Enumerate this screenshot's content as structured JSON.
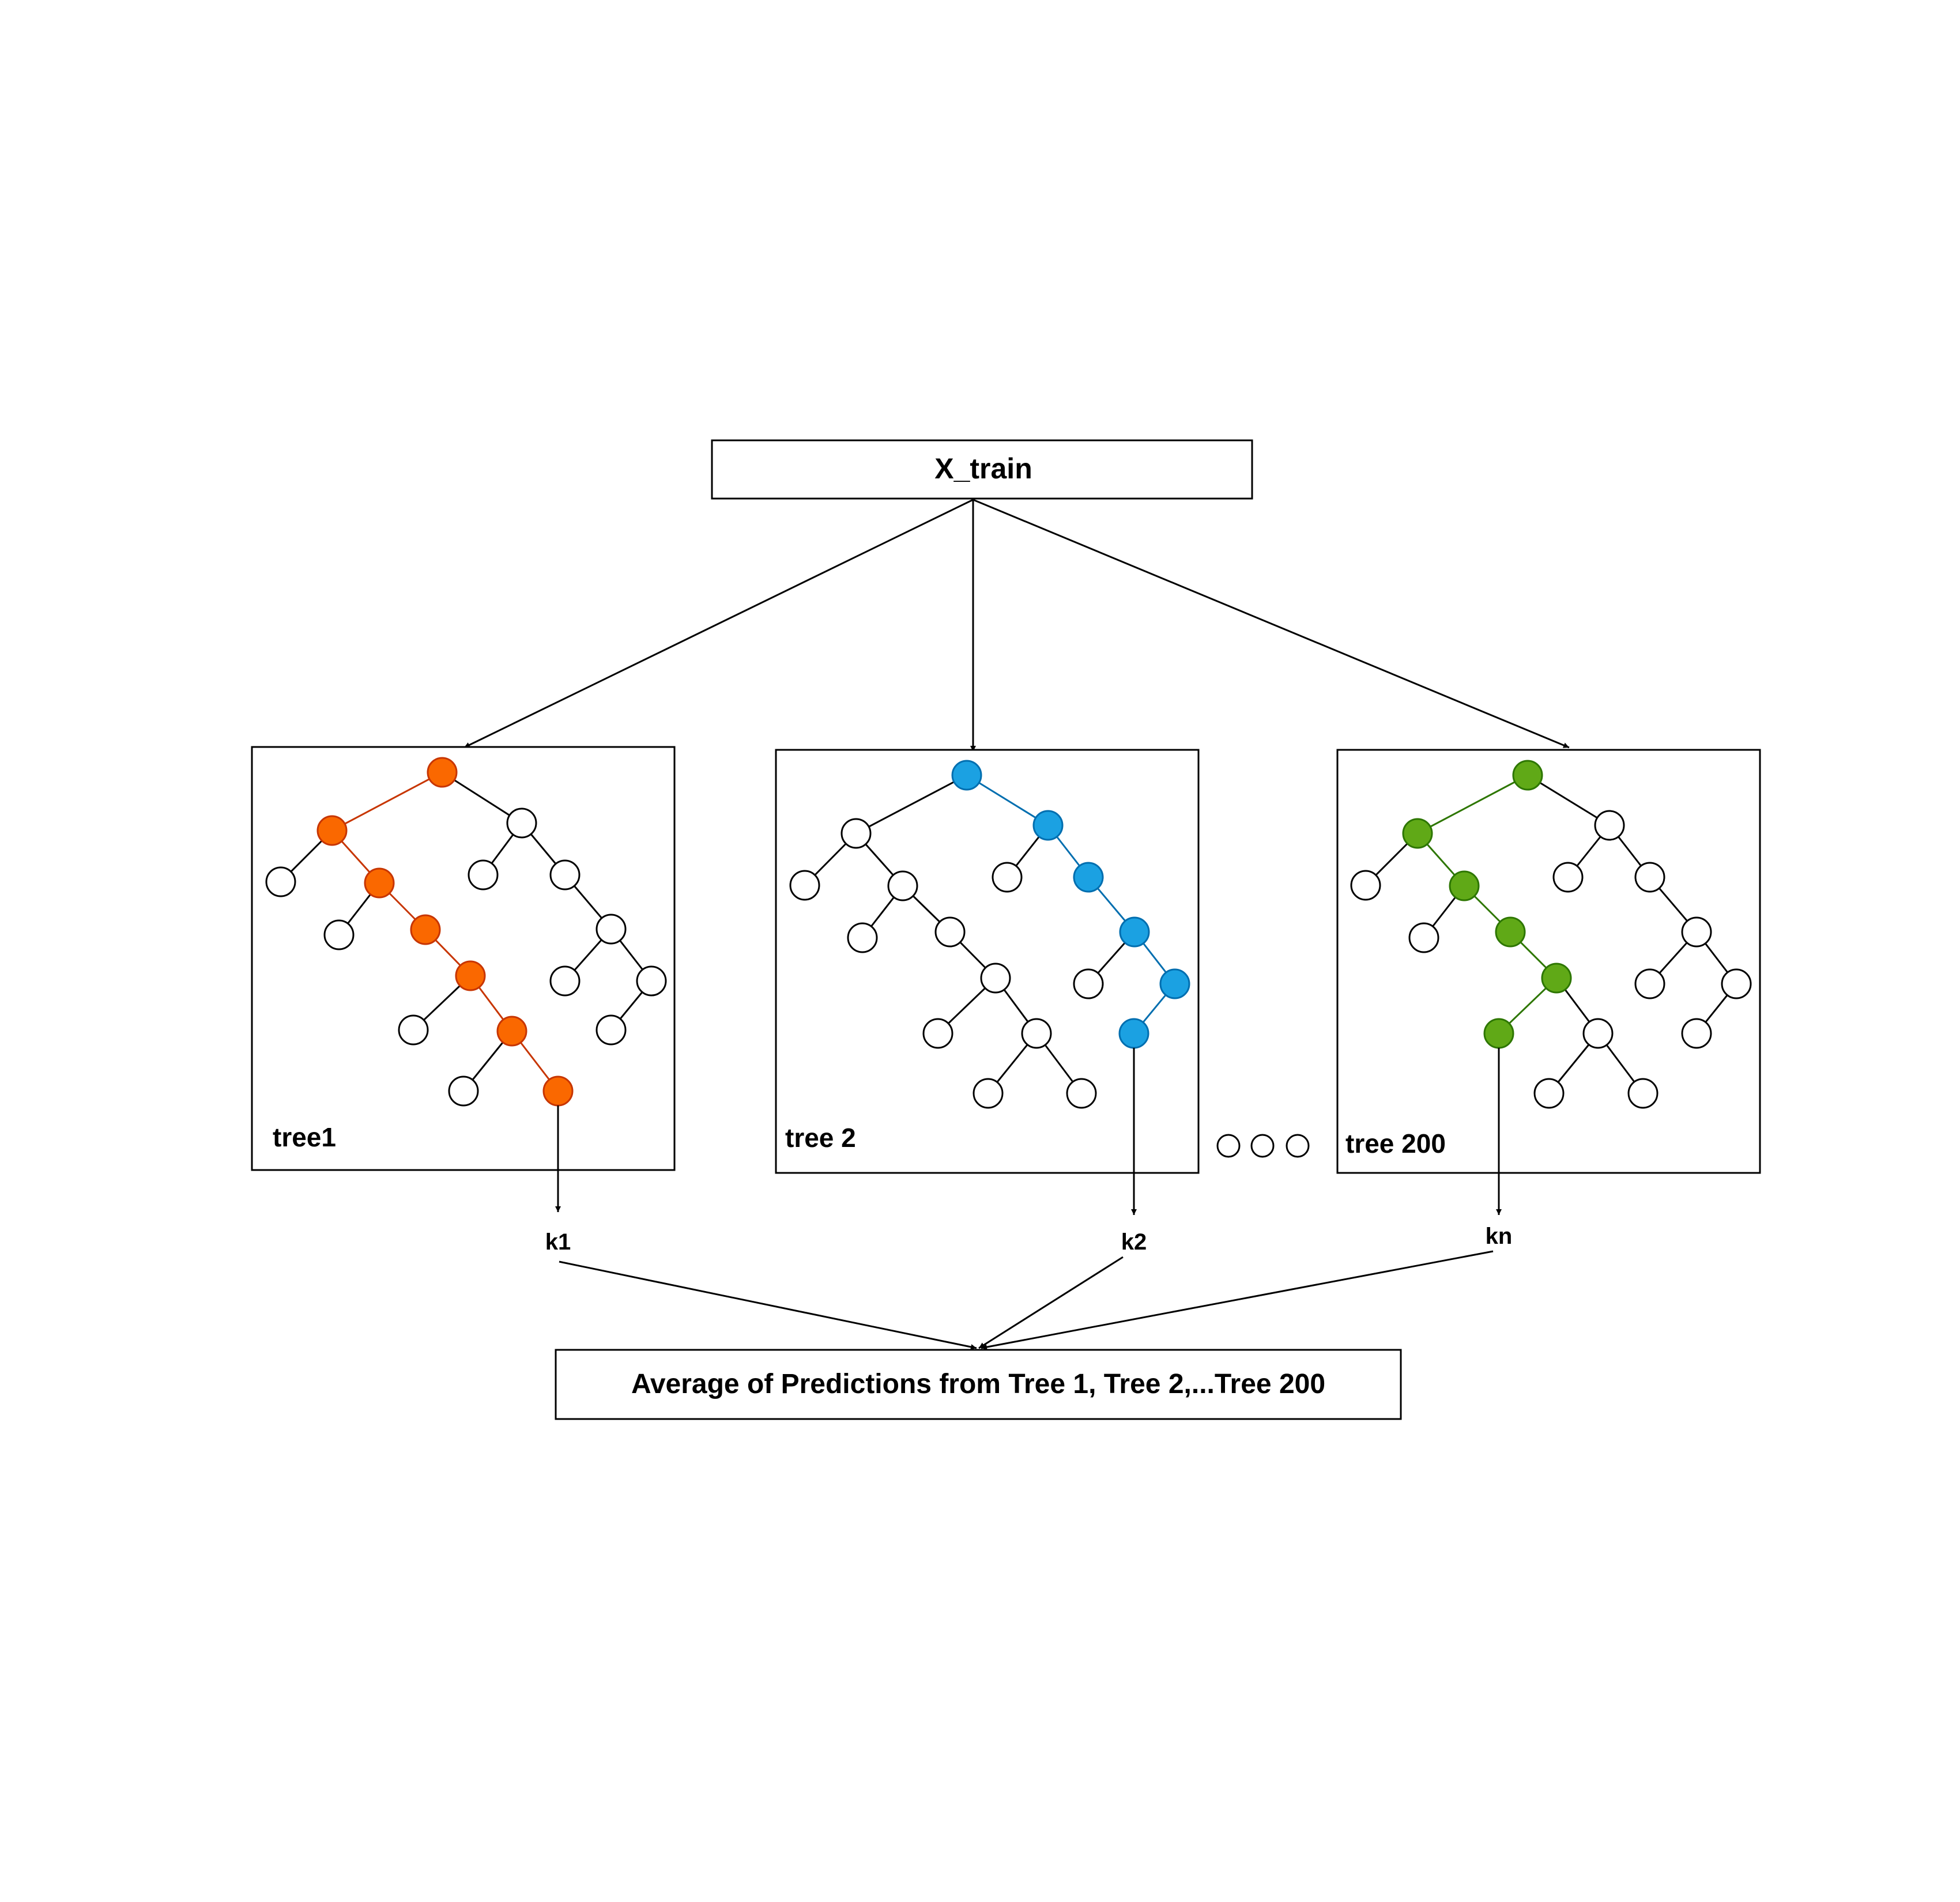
{
  "input": {
    "label": "X_train"
  },
  "trees": [
    {
      "label": "tree1",
      "color": "#fa6800",
      "stroke": "#c73500",
      "output": "k1"
    },
    {
      "label": "tree 2",
      "color": "#1ba1e2",
      "stroke": "#006eaf",
      "output": "k2"
    },
    {
      "label": "tree 200",
      "color": "#60a917",
      "stroke": "#2d7600",
      "output": "kn"
    }
  ],
  "ellipsis": {
    "count": 3
  },
  "result": {
    "label": "Average of Predictions from Tree 1, Tree 2,...Tree 200"
  },
  "colors": {
    "line": "#000000",
    "node_fill": "#ffffff"
  }
}
